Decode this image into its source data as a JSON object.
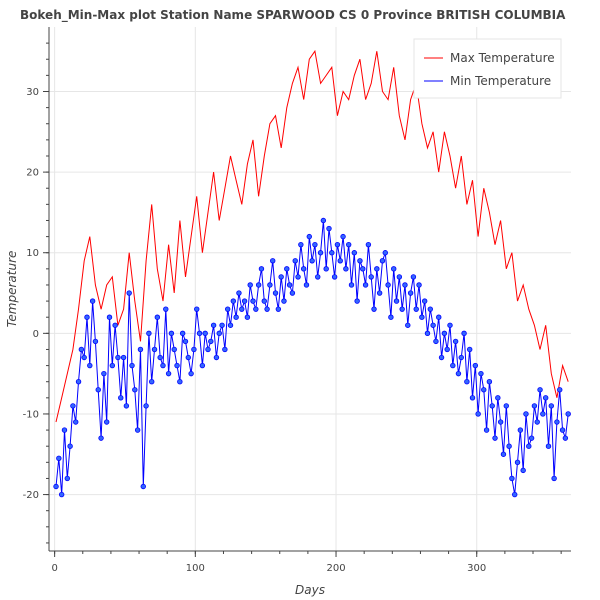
{
  "chart_data": {
    "type": "line",
    "title": "Bokeh_Min-Max plot   Station Name       SPARWOOD CS 0      Province  BRITISH COLUMBIA",
    "xlabel": "Days",
    "ylabel": "Temperature",
    "xlim": [
      -4,
      367
    ],
    "ylim": [
      -27,
      38
    ],
    "x_ticks": [
      0,
      100,
      200,
      300
    ],
    "y_ticks": [
      -20,
      -10,
      0,
      10,
      20,
      30
    ],
    "grid": true,
    "legend_position": "top-right",
    "colors": {
      "max": "#ff0000",
      "min": "#0000ff",
      "min_marker_fill": "#3366ff",
      "grid": "#e6e6e6",
      "axis": "#444444"
    },
    "series": [
      {
        "name": "Max Temperature",
        "x": [
          1,
          5,
          9,
          13,
          17,
          21,
          25,
          29,
          33,
          37,
          41,
          45,
          49,
          53,
          57,
          61,
          65,
          69,
          73,
          77,
          81,
          85,
          89,
          93,
          97,
          101,
          105,
          109,
          113,
          117,
          121,
          125,
          129,
          133,
          137,
          141,
          145,
          149,
          153,
          157,
          161,
          165,
          169,
          173,
          177,
          181,
          185,
          189,
          193,
          197,
          201,
          205,
          209,
          213,
          217,
          221,
          225,
          229,
          233,
          237,
          241,
          245,
          249,
          253,
          257,
          261,
          265,
          269,
          273,
          277,
          281,
          285,
          289,
          293,
          297,
          301,
          305,
          309,
          313,
          317,
          321,
          325,
          329,
          333,
          337,
          341,
          345,
          349,
          353,
          357,
          361,
          365
        ],
        "y": [
          -11,
          -8,
          -5,
          -2,
          3,
          9,
          12,
          6,
          3,
          6,
          7,
          1,
          3,
          10,
          4,
          -1,
          9,
          16,
          8,
          4,
          11,
          5,
          14,
          7,
          12,
          17,
          10,
          15,
          20,
          14,
          18,
          22,
          19,
          16,
          21,
          24,
          17,
          22,
          26,
          27,
          23,
          28,
          31,
          33,
          29,
          34,
          35,
          31,
          32,
          33,
          27,
          30,
          29,
          32,
          34,
          29,
          31,
          35,
          30,
          29,
          33,
          27,
          24,
          29,
          31,
          26,
          23,
          25,
          20,
          25,
          22,
          18,
          22,
          16,
          19,
          12,
          18,
          15,
          11,
          14,
          8,
          10,
          4,
          6,
          3,
          1,
          -2,
          1,
          -5,
          -8,
          -4,
          -6
        ]
      },
      {
        "name": "Min Temperature",
        "x": [
          1,
          3,
          5,
          7,
          9,
          11,
          13,
          15,
          17,
          19,
          21,
          23,
          25,
          27,
          29,
          31,
          33,
          35,
          37,
          39,
          41,
          43,
          45,
          47,
          49,
          51,
          53,
          55,
          57,
          59,
          61,
          63,
          65,
          67,
          69,
          71,
          73,
          75,
          77,
          79,
          81,
          83,
          85,
          87,
          89,
          91,
          93,
          95,
          97,
          99,
          101,
          103,
          105,
          107,
          109,
          111,
          113,
          115,
          117,
          119,
          121,
          123,
          125,
          127,
          129,
          131,
          133,
          135,
          137,
          139,
          141,
          143,
          145,
          147,
          149,
          151,
          153,
          155,
          157,
          159,
          161,
          163,
          165,
          167,
          169,
          171,
          173,
          175,
          177,
          179,
          181,
          183,
          185,
          187,
          189,
          191,
          193,
          195,
          197,
          199,
          201,
          203,
          205,
          207,
          209,
          211,
          213,
          215,
          217,
          219,
          221,
          223,
          225,
          227,
          229,
          231,
          233,
          235,
          237,
          239,
          241,
          243,
          245,
          247,
          249,
          251,
          253,
          255,
          257,
          259,
          261,
          263,
          265,
          267,
          269,
          271,
          273,
          275,
          277,
          279,
          281,
          283,
          285,
          287,
          289,
          291,
          293,
          295,
          297,
          299,
          301,
          303,
          305,
          307,
          309,
          311,
          313,
          315,
          317,
          319,
          321,
          323,
          325,
          327,
          329,
          331,
          333,
          335,
          337,
          339,
          341,
          343,
          345,
          347,
          349,
          351,
          353,
          355,
          357,
          359,
          361,
          363,
          365
        ],
        "y": [
          -19,
          -15.5,
          -20,
          -12,
          -18,
          -14,
          -9,
          -11,
          -6,
          -2,
          -3,
          2,
          -4,
          4,
          -1,
          -7,
          -13,
          -5,
          -11,
          2,
          -4,
          1,
          -3,
          -8,
          -3,
          -9,
          5,
          -4,
          -7,
          -12,
          -2,
          -19,
          -9,
          0,
          -6,
          -2,
          2,
          -3,
          -4,
          3,
          -5,
          0,
          -2,
          -4,
          -6,
          0,
          -1,
          -3,
          -5,
          -2,
          3,
          0,
          -4,
          0,
          -2,
          -1,
          1,
          -3,
          0,
          1,
          -2,
          3,
          1,
          4,
          2,
          5,
          3,
          4,
          2,
          6,
          4,
          3,
          6,
          8,
          4,
          3,
          6,
          9,
          5,
          3,
          7,
          4,
          8,
          6,
          5,
          9,
          7,
          11,
          8,
          6,
          12,
          9,
          11,
          7,
          10,
          14,
          8,
          13,
          10,
          7,
          11,
          9,
          12,
          8,
          11,
          6,
          10,
          4,
          9,
          8,
          6,
          11,
          7,
          3,
          8,
          5,
          9,
          10,
          6,
          2,
          8,
          4,
          7,
          3,
          6,
          1,
          5,
          7,
          3,
          6,
          2,
          4,
          0,
          3,
          1,
          -1,
          2,
          -3,
          0,
          -2,
          1,
          -4,
          -1,
          -5,
          -3,
          0,
          -6,
          -2,
          -8,
          -4,
          -10,
          -5,
          -7,
          -12,
          -6,
          -9,
          -13,
          -8,
          -11,
          -15,
          -9,
          -14,
          -18,
          -20,
          -16,
          -12,
          -17,
          -10,
          -14,
          -13,
          -9,
          -11,
          -7,
          -10,
          -8,
          -14,
          -9,
          -18,
          -11,
          -7,
          -12,
          -13,
          -10
        ]
      }
    ]
  }
}
